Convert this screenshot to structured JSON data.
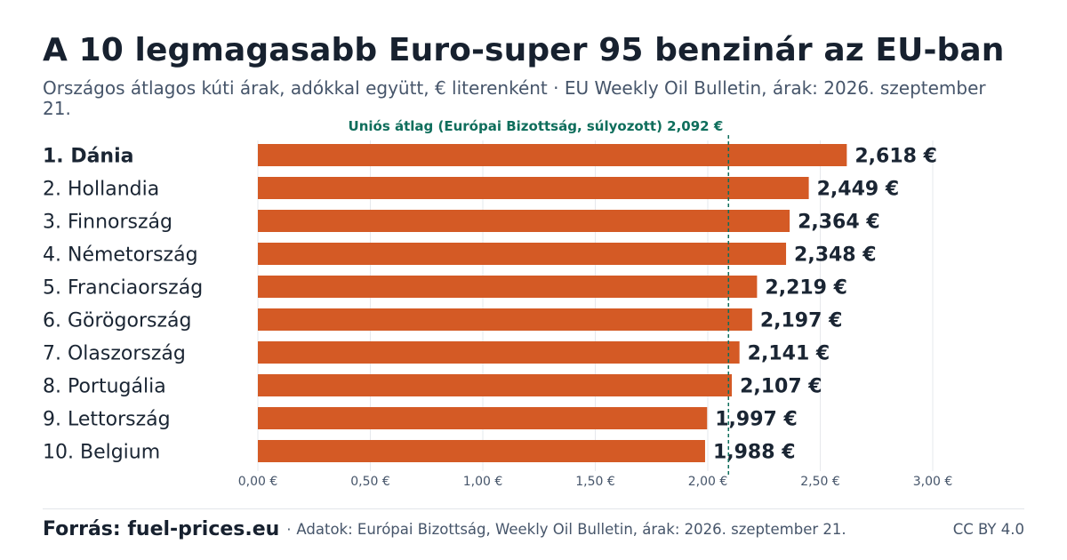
{
  "header": {
    "title": "A 10 legmagasabb Euro-super 95 benzinár az EU-ban",
    "subtitle": "Országos átlagos kúti árak, adókkal együtt, € literenként · EU Weekly Oil Bulletin, árak: 2026. szeptember 21."
  },
  "chart_data": {
    "type": "bar",
    "orientation": "horizontal",
    "categories": [
      "1. Dánia",
      "2. Hollandia",
      "3. Finnország",
      "4. Németország",
      "5. Franciaország",
      "6. Görögország",
      "7. Olaszország",
      "8. Portugália",
      "9. Lettország",
      "10. Belgium"
    ],
    "values": [
      2.618,
      2.449,
      2.364,
      2.348,
      2.219,
      2.197,
      2.141,
      2.107,
      1.997,
      1.988
    ],
    "value_labels": [
      "2,618 €",
      "2,449 €",
      "2,364 €",
      "2,348 €",
      "2,219 €",
      "2,197 €",
      "2,141 €",
      "2,107 €",
      "1,997 €",
      "1,988 €"
    ],
    "highlight_index": 0,
    "xlim": [
      0,
      3.0
    ],
    "xticks": [
      0,
      0.5,
      1.0,
      1.5,
      2.0,
      2.5,
      3.0
    ],
    "xtick_labels": [
      "0,00 €",
      "0,50 €",
      "1,00 €",
      "1,50 €",
      "2,00 €",
      "2,50 €",
      "3,00 €"
    ],
    "grid": true,
    "reference_line": {
      "value": 2.092,
      "label": "Uniós átlag (Európai Bizottság, súlyozott) 2,092 €",
      "style": "dashed"
    },
    "colors": {
      "bar": "#d45a25",
      "reference": "#0f6e5c",
      "grid": "#e6e8ec",
      "label": "#1a2533",
      "tick": "#46556a"
    }
  },
  "footer": {
    "source": "Forrás: fuel-prices.eu",
    "separator": "·",
    "note": "Adatok: Európai Bizottság, Weekly Oil Bulletin, árak: 2026. szeptember 21.",
    "license": "CC BY 4.0"
  }
}
